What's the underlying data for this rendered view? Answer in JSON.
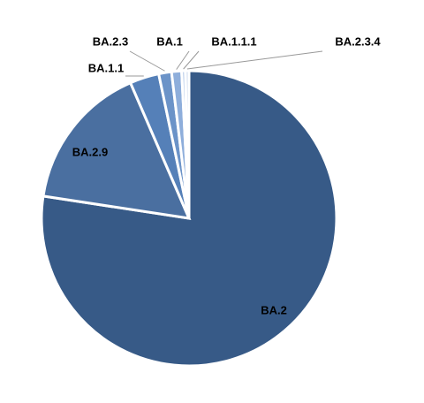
{
  "chart_data": {
    "type": "pie",
    "categories": [
      "BA.2",
      "BA.2.9",
      "BA.1.1",
      "BA.2.3",
      "BA.1",
      "BA.1.1.1",
      "BA.2.3.4"
    ],
    "values": [
      77.4,
      16.1,
      3.2,
      1.4,
      1.1,
      0.4,
      0.4
    ],
    "colors": [
      "#375a87",
      "#4a6fa0",
      "#5580b8",
      "#6b93c8",
      "#8eaedb",
      "#b3c8e8",
      "#d0dcef"
    ]
  }
}
